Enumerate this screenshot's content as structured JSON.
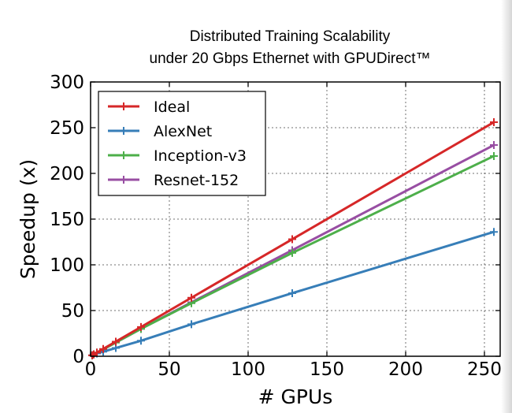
{
  "title_line1": "Distributed Training Scalability",
  "title_line2": "under 20 Gbps Ethernet with GPUDirect™",
  "chart_data": {
    "type": "line",
    "title": "Distributed Training Scalability under 20 Gbps Ethernet with GPUDirect™",
    "xlabel": "# GPUs",
    "ylabel": "Speedup (x)",
    "xlim": [
      0,
      260
    ],
    "ylim": [
      0,
      300
    ],
    "xticks": [
      0,
      50,
      100,
      150,
      200,
      250
    ],
    "yticks": [
      0,
      50,
      100,
      150,
      200,
      250,
      300
    ],
    "grid": true,
    "legend_position": "top-left",
    "series": [
      {
        "name": "Ideal",
        "color": "#d62728",
        "x": [
          1,
          2,
          4,
          8,
          16,
          32,
          64,
          128,
          256
        ],
        "y": [
          1,
          2,
          4,
          8,
          16,
          32,
          64,
          128,
          256
        ]
      },
      {
        "name": "AlexNet",
        "color": "#377eb8",
        "x": [
          1,
          2,
          4,
          8,
          16,
          32,
          64,
          128,
          256
        ],
        "y": [
          1,
          2,
          3,
          5,
          9,
          17,
          35,
          69,
          136
        ]
      },
      {
        "name": "Inception-v3",
        "color": "#4daf4a",
        "x": [
          1,
          2,
          4,
          8,
          16,
          32,
          64,
          128,
          256
        ],
        "y": [
          1,
          2,
          4,
          7.5,
          15,
          30,
          58,
          113,
          219
        ]
      },
      {
        "name": "Resnet-152",
        "color": "#984ea3",
        "x": [
          1,
          2,
          4,
          8,
          16,
          32,
          64,
          128,
          256
        ],
        "y": [
          1,
          2,
          4,
          7.5,
          15,
          30,
          59,
          116,
          231
        ]
      }
    ]
  }
}
